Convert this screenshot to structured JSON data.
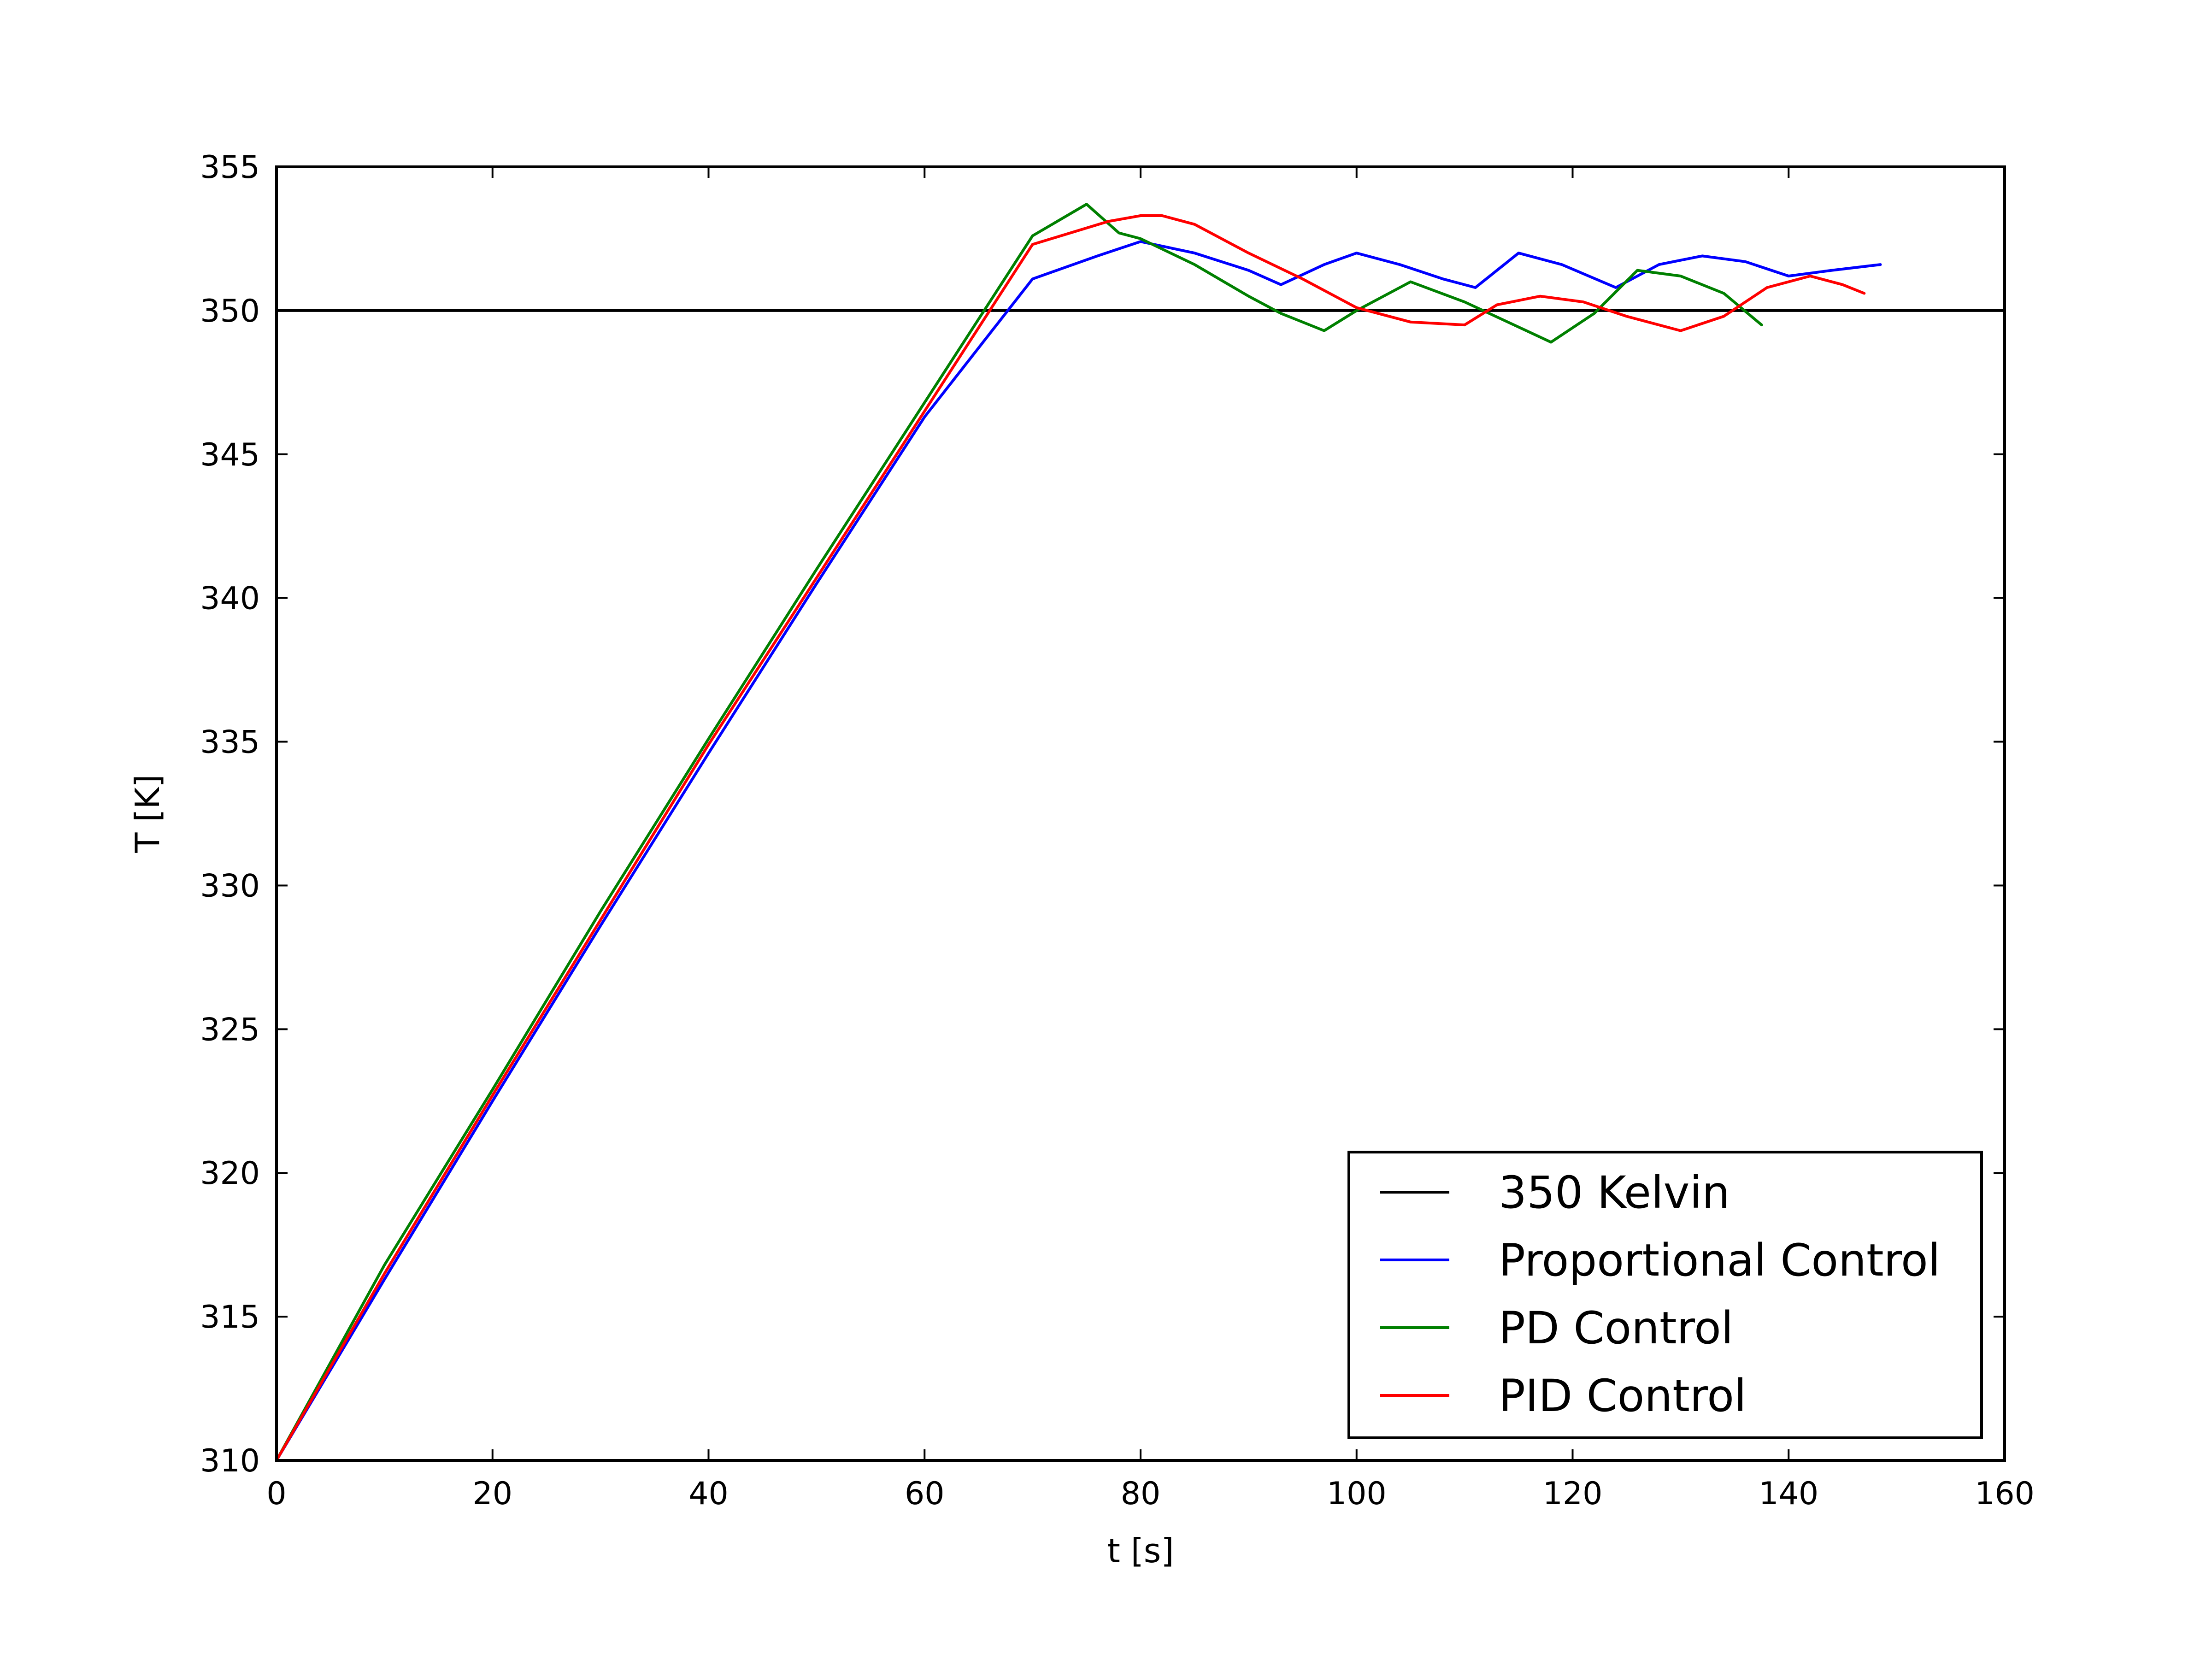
{
  "chart_data": {
    "type": "line",
    "title": "",
    "xlabel": "t [s]",
    "ylabel": "T [K]",
    "xlim": [
      0,
      160
    ],
    "ylim": [
      310,
      355
    ],
    "xticks": [
      0,
      20,
      40,
      60,
      80,
      100,
      120,
      140,
      160
    ],
    "yticks": [
      310,
      315,
      320,
      325,
      330,
      335,
      340,
      345,
      350,
      355
    ],
    "grid": false,
    "legend_position": "lower-right",
    "series": [
      {
        "name": "350 Kelvin",
        "color": "#000000",
        "x": [
          0,
          160
        ],
        "y": [
          350,
          350
        ]
      },
      {
        "name": "Proportional Control",
        "color": "#0000ff",
        "x": [
          0,
          10,
          20,
          30,
          40,
          50,
          60,
          70,
          76,
          80,
          85,
          90,
          93,
          97,
          100,
          104,
          108,
          111,
          115,
          119,
          124,
          128,
          132,
          136,
          140,
          144,
          148.5
        ],
        "y": [
          310.0,
          316.3,
          322.5,
          328.6,
          334.6,
          340.5,
          346.3,
          351.1,
          351.9,
          352.4,
          352.0,
          351.4,
          350.9,
          351.6,
          352.0,
          351.6,
          351.1,
          350.8,
          352.0,
          351.6,
          350.8,
          351.6,
          351.9,
          351.7,
          351.2,
          351.4,
          351.6
        ]
      },
      {
        "name": "PD Control",
        "color": "#008000",
        "x": [
          0,
          10,
          20,
          30,
          40,
          50,
          60,
          70,
          75,
          78,
          80,
          85,
          90,
          93,
          97,
          100,
          105,
          110,
          114,
          118,
          122,
          126,
          130,
          134,
          137.5
        ],
        "y": [
          310.0,
          316.8,
          322.9,
          329.1,
          335.1,
          341.0,
          346.8,
          352.6,
          353.7,
          352.7,
          352.5,
          351.6,
          350.5,
          349.9,
          349.3,
          350.0,
          351.0,
          350.3,
          349.6,
          348.9,
          349.9,
          351.4,
          351.2,
          350.6,
          349.5
        ]
      },
      {
        "name": "PID Control",
        "color": "#ff0000",
        "x": [
          0,
          10,
          20,
          30,
          40,
          50,
          60,
          70,
          77,
          80,
          82,
          85,
          90,
          95,
          100,
          105,
          110,
          113,
          117,
          121,
          125,
          130,
          134,
          138,
          142,
          145,
          147
        ],
        "y": [
          310.0,
          316.5,
          322.7,
          328.8,
          334.9,
          340.7,
          346.5,
          352.3,
          353.1,
          353.3,
          353.3,
          353.0,
          352.0,
          351.1,
          350.1,
          349.6,
          349.5,
          350.2,
          350.5,
          350.3,
          349.8,
          349.3,
          349.8,
          350.8,
          351.2,
          350.9,
          350.6
        ]
      }
    ]
  }
}
